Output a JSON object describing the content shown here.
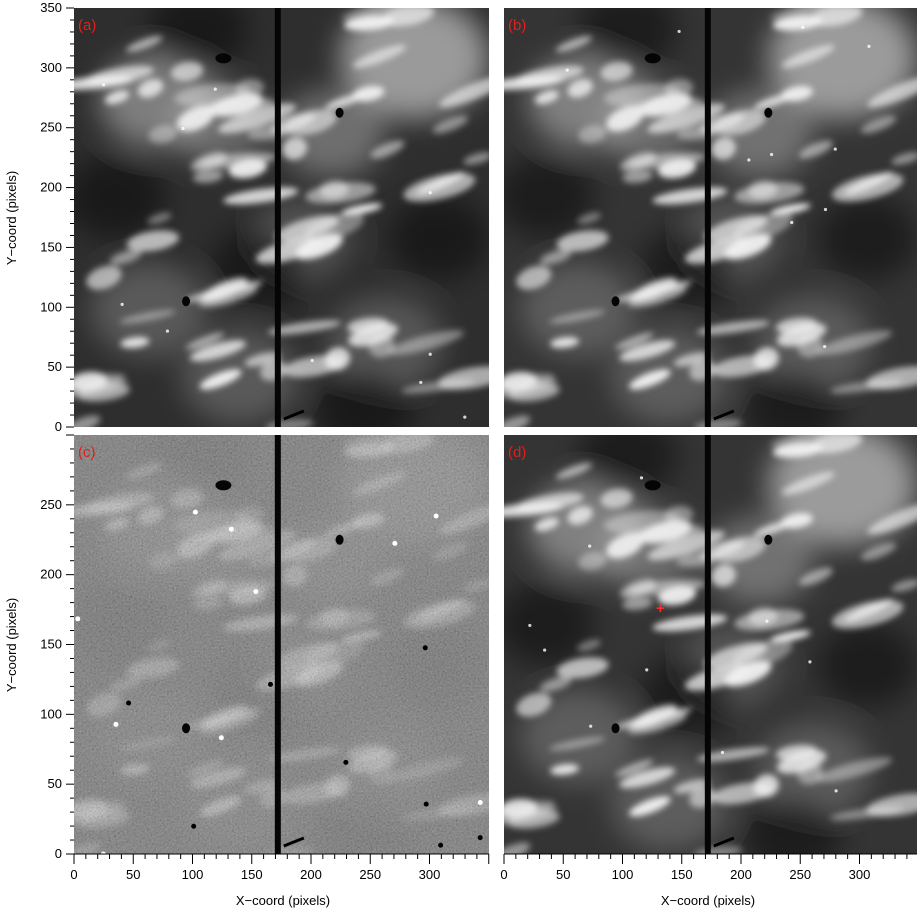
{
  "figure": {
    "x_axis_label": "X−coord (pixels)",
    "y_axis_label": "Y−coord (pixels)",
    "label_color": "#e0201c",
    "marker_color": "#ff2a2a",
    "colormap": "grayscale",
    "panels": [
      {
        "id": "a",
        "label": "(a)",
        "image_kind": "smooth intensity",
        "x_ticks": [],
        "y_ticks": [
          "0",
          "50",
          "100",
          "150",
          "200",
          "250",
          "300",
          "350"
        ],
        "xlim": [
          0,
          350
        ],
        "ylim": [
          0,
          350
        ]
      },
      {
        "id": "b",
        "label": "(b)",
        "image_kind": "smooth intensity",
        "x_ticks": [],
        "y_ticks": [],
        "xlim": [
          0,
          350
        ],
        "ylim": [
          0,
          350
        ]
      },
      {
        "id": "c",
        "label": "(c)",
        "image_kind": "high-pass grain",
        "x_ticks": [
          "0",
          "50",
          "100",
          "150",
          "200",
          "250",
          "300"
        ],
        "y_ticks": [
          "0",
          "50",
          "100",
          "150",
          "200",
          "250"
        ],
        "xlim": [
          0,
          350
        ],
        "ylim": [
          0,
          300
        ]
      },
      {
        "id": "d",
        "label": "(d)",
        "image_kind": "smooth intensity",
        "x_ticks": [
          "0",
          "50",
          "100",
          "150",
          "200",
          "250",
          "300"
        ],
        "y_ticks": [],
        "xlim": [
          0,
          350
        ],
        "ylim": [
          0,
          300
        ],
        "marker": {
          "symbol": "+",
          "x": 132,
          "y": 176
        }
      }
    ]
  }
}
